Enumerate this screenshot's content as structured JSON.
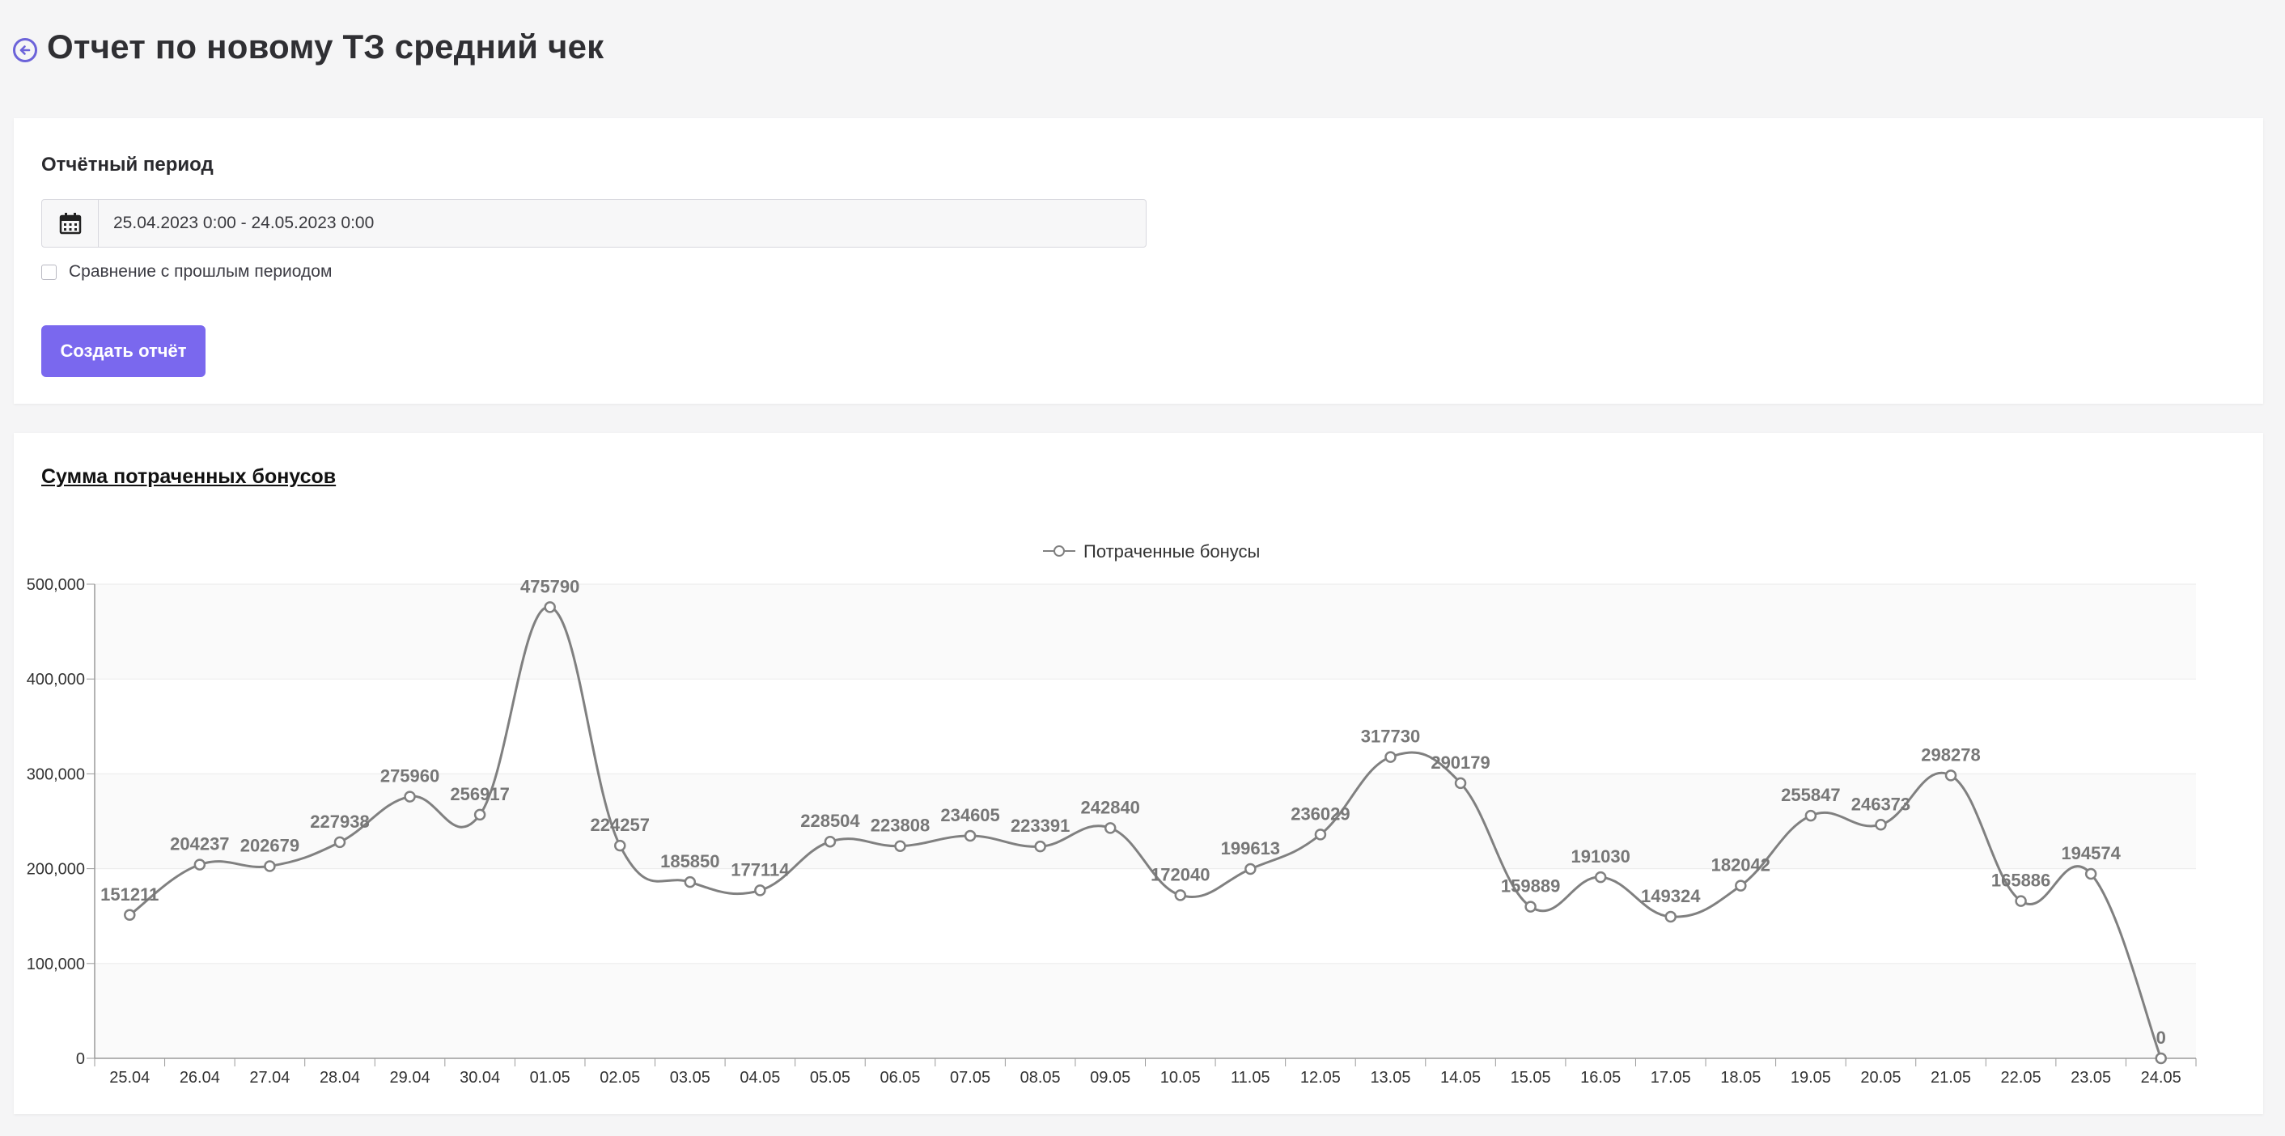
{
  "page": {
    "title": "Отчет по новому ТЗ средний чек"
  },
  "filter": {
    "period_label": "Отчётный период",
    "date_range": "25.04.2023 0:00 - 24.05.2023 0:00",
    "compare_label": "Сравнение с прошлым периодом",
    "create_button": "Создать отчёт"
  },
  "icons": {
    "back": "arrow-left-circle-icon",
    "calendar": "calendar-icon"
  },
  "colors": {
    "accent": "#7a68ee",
    "line": "#808080",
    "back_icon": "#6c63d9"
  },
  "chart_card": {
    "title": "Сумма потраченных бонусов"
  },
  "chart_data": {
    "type": "line",
    "title": "Сумма потраченных бонусов",
    "categories": [
      "25.04",
      "26.04",
      "27.04",
      "28.04",
      "29.04",
      "30.04",
      "01.05",
      "02.05",
      "03.05",
      "04.05",
      "05.05",
      "06.05",
      "07.05",
      "08.05",
      "09.05",
      "10.05",
      "11.05",
      "12.05",
      "13.05",
      "14.05",
      "15.05",
      "16.05",
      "17.05",
      "18.05",
      "19.05",
      "20.05",
      "21.05",
      "22.05",
      "23.05",
      "24.05"
    ],
    "series": [
      {
        "name": "Потраченные бонусы",
        "values": [
          151211,
          204237,
          202679,
          227938,
          275960,
          256917,
          475790,
          224257,
          185850,
          177114,
          228504,
          223808,
          234605,
          223391,
          242840,
          172040,
          199613,
          236029,
          317730,
          290179,
          159889,
          191030,
          149324,
          182042,
          255847,
          246373,
          298278,
          165886,
          194574,
          0
        ]
      }
    ],
    "y_ticks": [
      "0",
      "100,000",
      "200,000",
      "300,000",
      "400,000",
      "500,000"
    ],
    "ylim": [
      0,
      500000
    ],
    "legend": "top-center",
    "grid": true,
    "data_labels": true
  }
}
